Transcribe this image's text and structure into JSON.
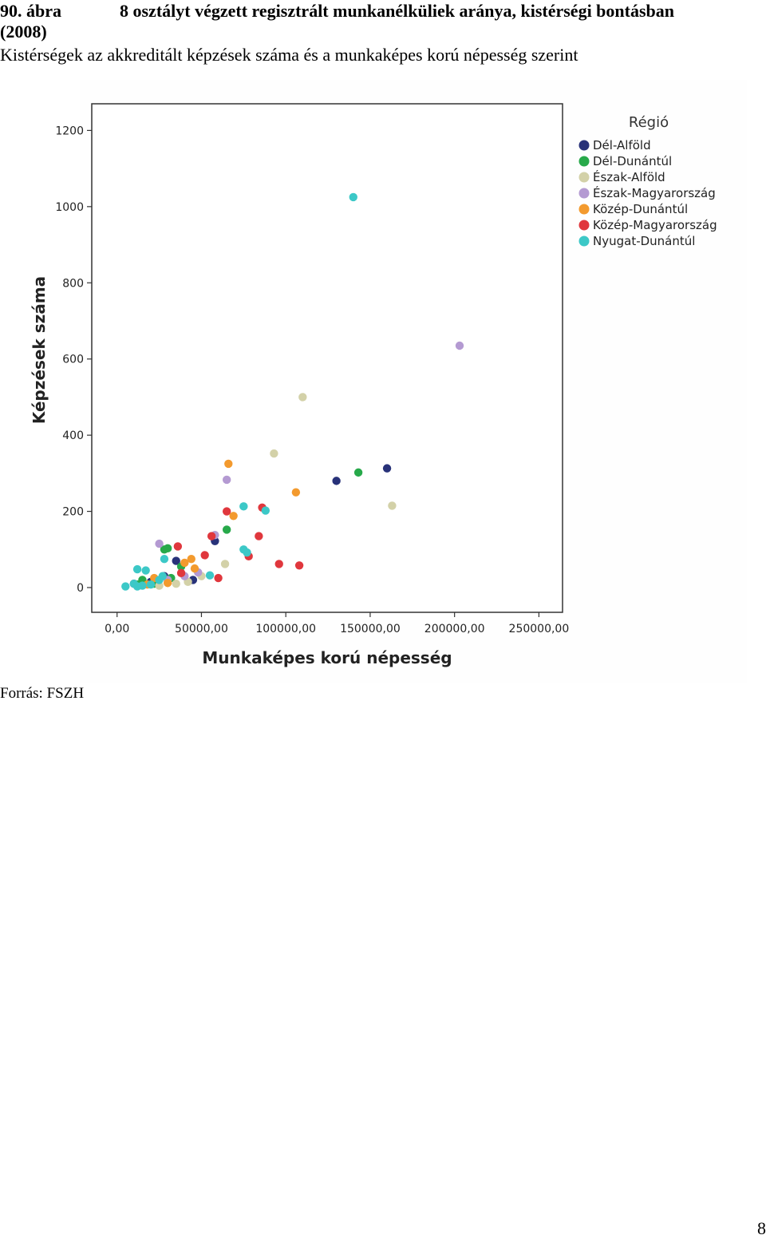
{
  "caption": {
    "number": "90. ábra",
    "title": "8 osztályt végzett regisztrált munkanélküliek aránya, kistérségi bontásban",
    "title_cont": "(2008)"
  },
  "subtitle": "Kistérségek az akkreditált képzések száma és a munkaképes korú népesség szerint",
  "source": "Forrás: FSZH",
  "page_number": "8",
  "chart_data": {
    "type": "scatter",
    "title": "",
    "xlabel": "Munkaképes korú népesség",
    "ylabel": "Képzések száma",
    "xlim": [
      -15000,
      264000
    ],
    "ylim": [
      -65,
      1270
    ],
    "xticks": [
      0,
      50000,
      100000,
      150000,
      200000,
      250000
    ],
    "xtick_labels": [
      "0,00",
      "50000,00",
      "100000,00",
      "150000,00",
      "200000,00",
      "250000,00"
    ],
    "yticks": [
      0,
      200,
      400,
      600,
      800,
      1000,
      1200
    ],
    "ytick_labels": [
      "0",
      "200",
      "400",
      "600",
      "800",
      "1000",
      "1200"
    ],
    "grid": false,
    "legend_title": "Régió",
    "legend_position": "right",
    "series": [
      {
        "name": "Dél-Alföld",
        "color": "#283279",
        "points": [
          [
            130000,
            280
          ],
          [
            160000,
            313
          ],
          [
            58000,
            122
          ],
          [
            35000,
            70
          ],
          [
            28000,
            30
          ],
          [
            20000,
            15
          ],
          [
            45000,
            20
          ],
          [
            10000,
            10
          ]
        ]
      },
      {
        "name": "Dél-Dunántúl",
        "color": "#27a94a",
        "points": [
          [
            143000,
            302
          ],
          [
            65000,
            152
          ],
          [
            28000,
            100
          ],
          [
            30000,
            103
          ],
          [
            38000,
            55
          ],
          [
            15000,
            20
          ],
          [
            22000,
            10
          ],
          [
            32000,
            25
          ],
          [
            12000,
            8
          ]
        ]
      },
      {
        "name": "Észak-Alföld",
        "color": "#d3d1a8",
        "points": [
          [
            110000,
            500
          ],
          [
            93000,
            352
          ],
          [
            163000,
            215
          ],
          [
            64000,
            62
          ],
          [
            42000,
            15
          ],
          [
            35000,
            10
          ],
          [
            25000,
            5
          ],
          [
            50000,
            30
          ]
        ]
      },
      {
        "name": "Észak-Magyarország",
        "color": "#b49ad2",
        "points": [
          [
            203000,
            635
          ],
          [
            65000,
            283
          ],
          [
            25000,
            115
          ],
          [
            58000,
            138
          ],
          [
            48000,
            40
          ],
          [
            40000,
            30
          ],
          [
            30000,
            20
          ]
        ]
      },
      {
        "name": "Közép-Dunántúl",
        "color": "#f39a2e",
        "points": [
          [
            66000,
            325
          ],
          [
            106000,
            250
          ],
          [
            69000,
            188
          ],
          [
            44000,
            75
          ],
          [
            40000,
            65
          ],
          [
            46000,
            50
          ],
          [
            22000,
            25
          ],
          [
            30000,
            12
          ],
          [
            18000,
            8
          ]
        ]
      },
      {
        "name": "Közép-Magyarország",
        "color": "#e0373d",
        "points": [
          [
            65000,
            200
          ],
          [
            86000,
            210
          ],
          [
            84000,
            135
          ],
          [
            56000,
            135
          ],
          [
            52000,
            85
          ],
          [
            36000,
            108
          ],
          [
            78000,
            82
          ],
          [
            96000,
            62
          ],
          [
            108000,
            58
          ],
          [
            60000,
            25
          ],
          [
            38000,
            38
          ]
        ]
      },
      {
        "name": "Nyugat-Dunántúl",
        "color": "#3cc8c7",
        "points": [
          [
            140000,
            1025
          ],
          [
            75000,
            213
          ],
          [
            88000,
            202
          ],
          [
            75000,
            100
          ],
          [
            77000,
            92
          ],
          [
            28000,
            75
          ],
          [
            12000,
            48
          ],
          [
            17000,
            45
          ],
          [
            55000,
            32
          ],
          [
            27000,
            30
          ],
          [
            10000,
            10
          ],
          [
            5000,
            3
          ],
          [
            15000,
            5
          ],
          [
            20000,
            8
          ],
          [
            12000,
            3
          ],
          [
            25000,
            20
          ]
        ]
      }
    ]
  }
}
